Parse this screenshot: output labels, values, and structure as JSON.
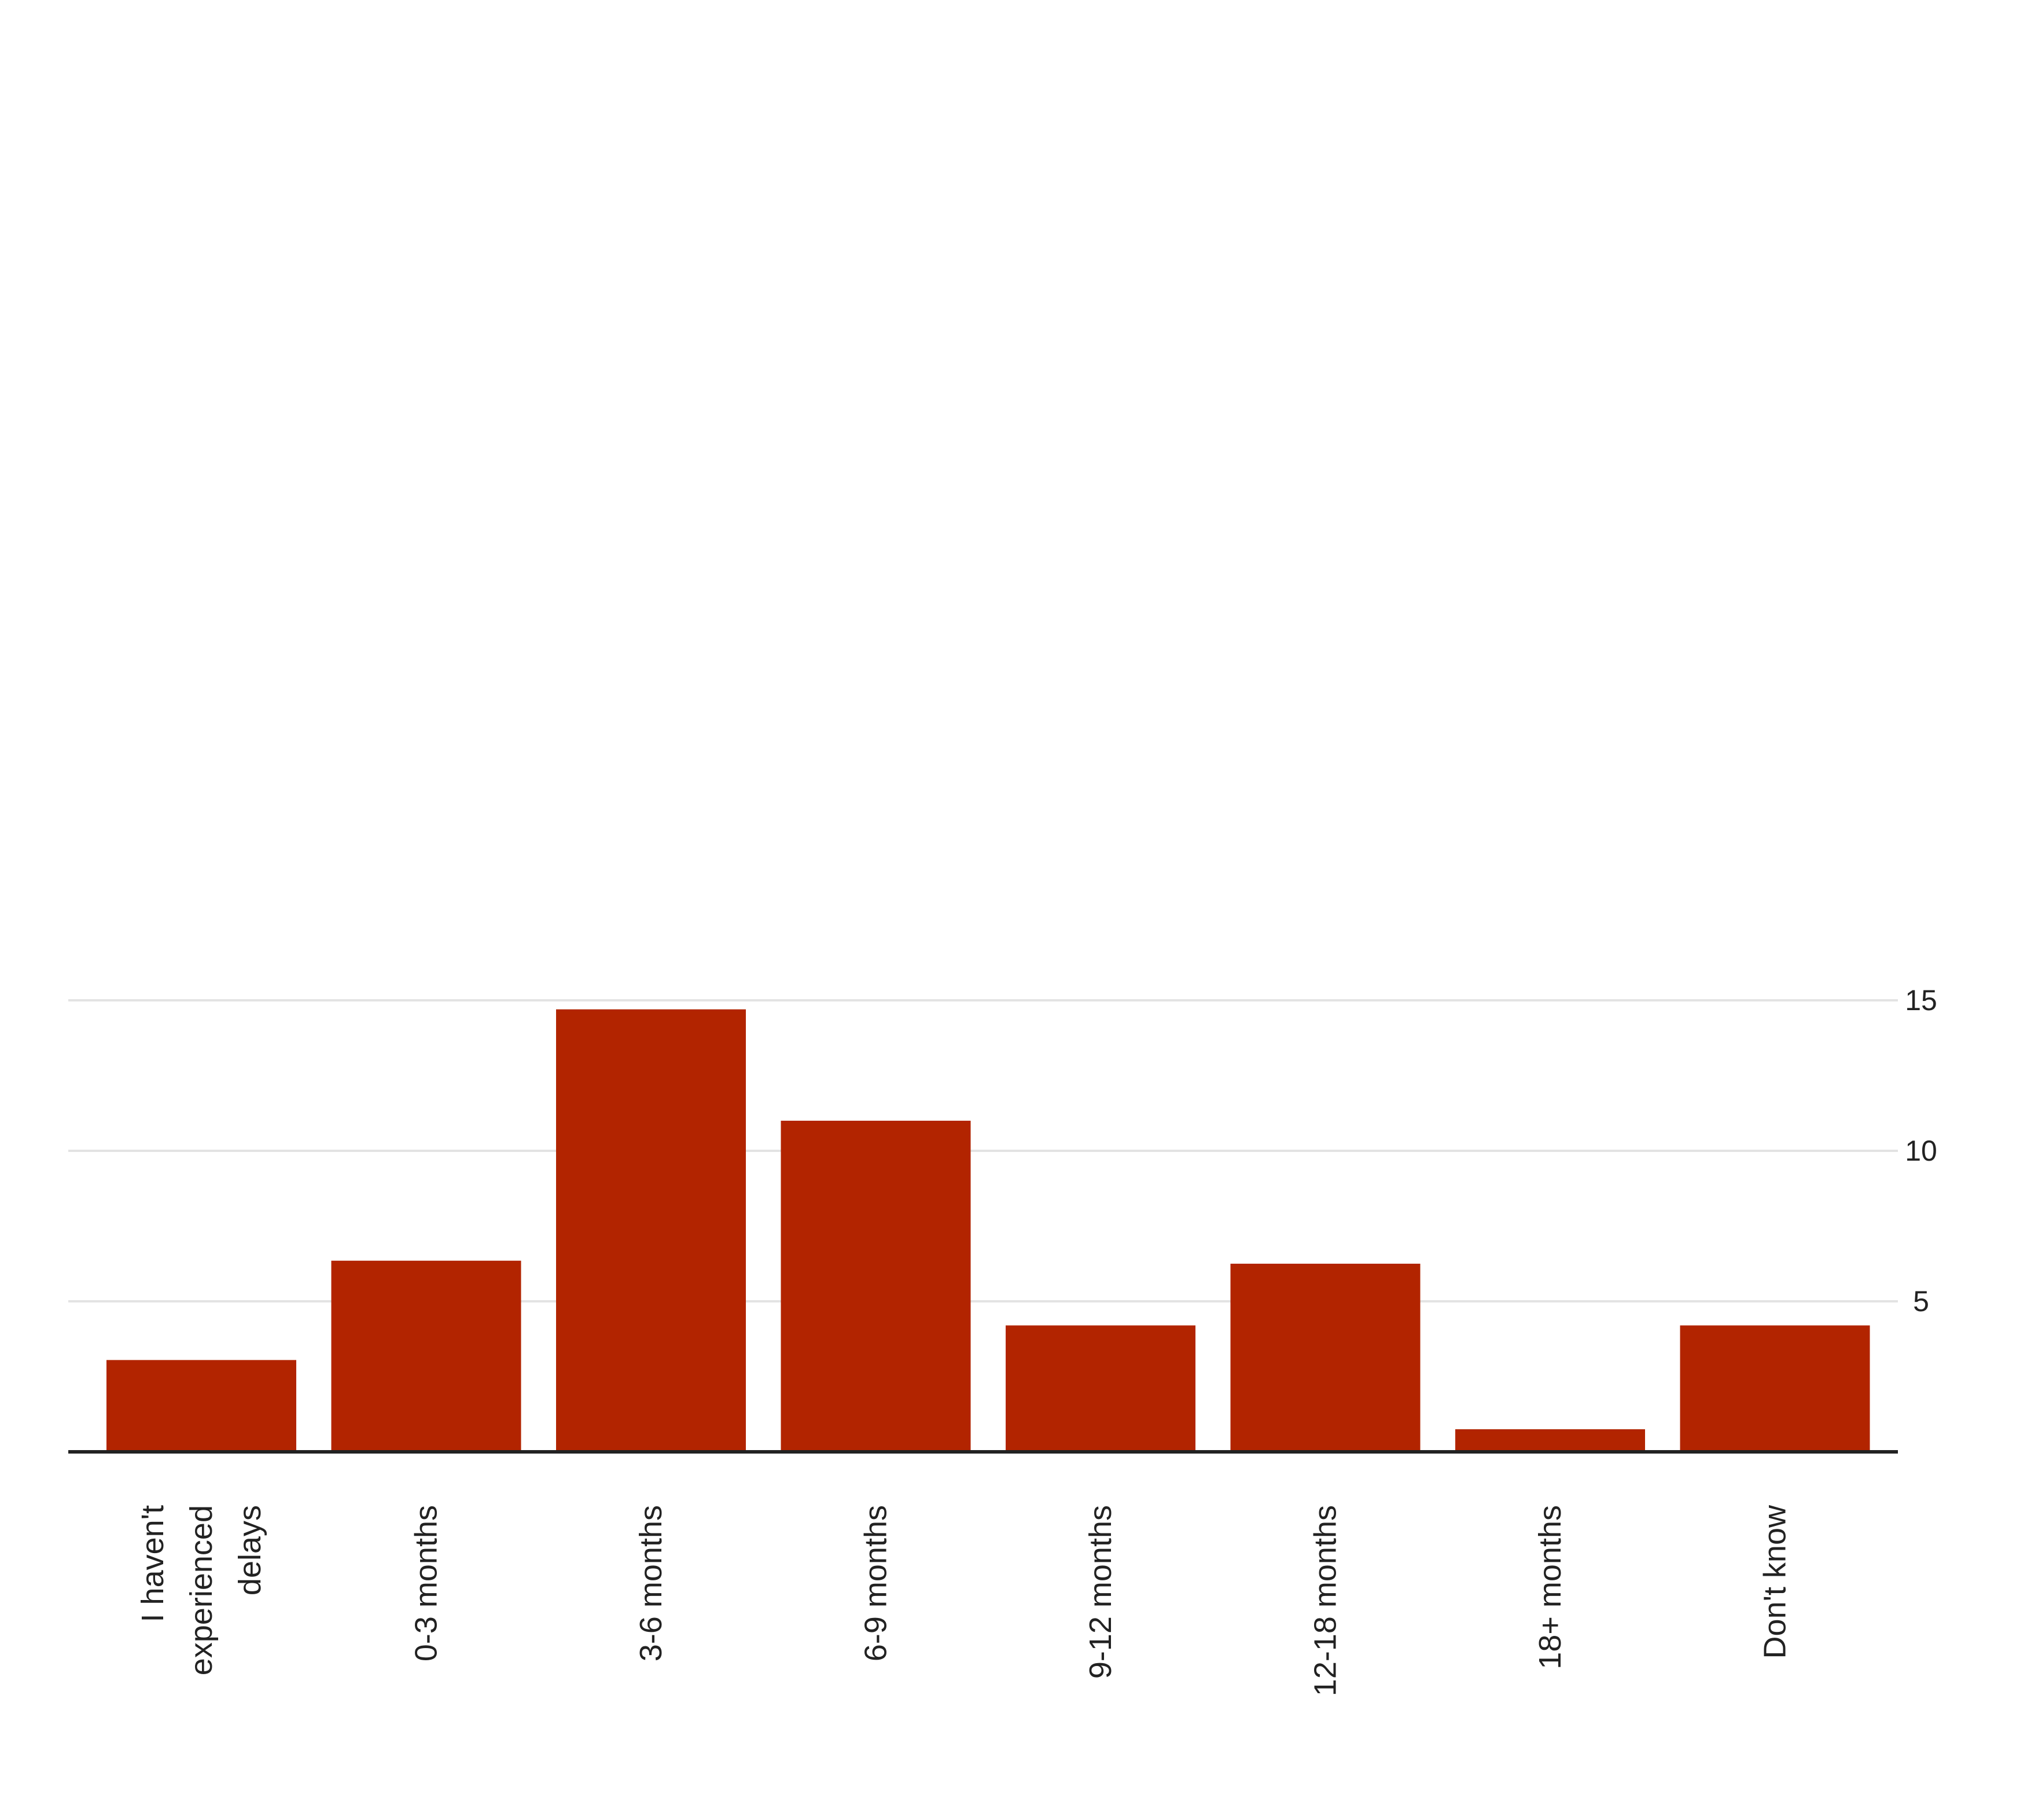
{
  "chart_data": {
    "type": "bar",
    "categories": [
      "I haven't experienced delays",
      "0-3 months",
      "3-6 months",
      "6-9 months",
      "9-12 months",
      "12-18 months",
      "18+ months",
      "Don't know"
    ],
    "category_label_lines": [
      [
        "I haven't",
        "experienced",
        "delays"
      ],
      [
        "0-3 months"
      ],
      [
        "3-6 months"
      ],
      [
        "6-9 months"
      ],
      [
        "9-12 months"
      ],
      [
        "12-18 months"
      ],
      [
        "18+ months"
      ],
      [
        "Don't know"
      ]
    ],
    "values": [
      3.05,
      6.35,
      14.7,
      11.0,
      4.2,
      6.25,
      0.75,
      4.2
    ],
    "ylim": [
      0,
      15
    ],
    "yticks": [
      5,
      10,
      15
    ],
    "ytick_labels": [
      "5",
      "10",
      "15"
    ],
    "y_axis_side": "right",
    "grid": true,
    "bar_color": "#b22400",
    "grid_color": "#e3e3e3",
    "axis_color": "#222222",
    "title": "",
    "xlabel": "",
    "ylabel": ""
  }
}
